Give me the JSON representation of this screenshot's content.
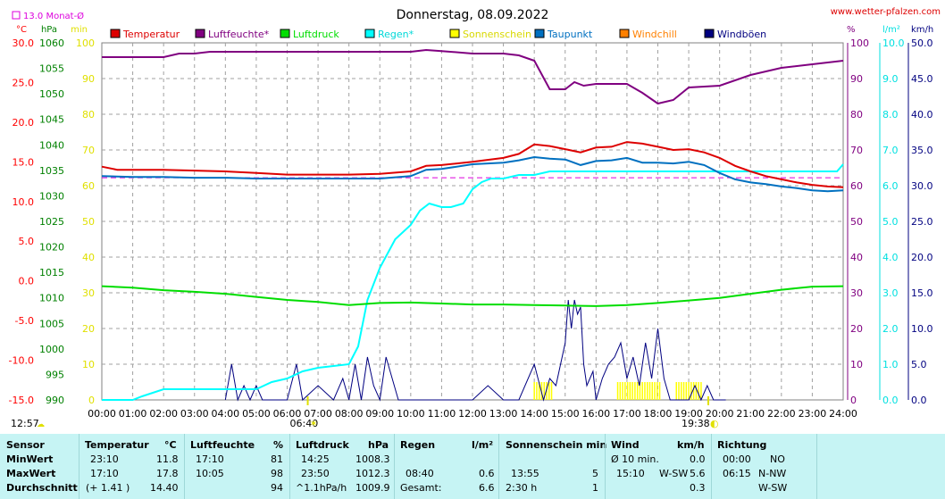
{
  "chart_data": {
    "type": "line",
    "title": "Donnerstag, 08.09.2022",
    "source": "www.wetter-pfalzen.com",
    "month_avg_label": "13.0 Monat-Ø",
    "x_ticks": [
      "00:00",
      "01:00",
      "02:00",
      "03:00",
      "04:00",
      "05:00",
      "06:00",
      "07:00",
      "08:00",
      "09:00",
      "10:00",
      "11:00",
      "12:00",
      "13:00",
      "14:00",
      "15:00",
      "16:00",
      "17:00",
      "18:00",
      "19:00",
      "20:00",
      "21:00",
      "22:00",
      "23:00",
      "24:00"
    ],
    "sunrise": "06:40",
    "sunset": "19:38",
    "daylength": "12:57",
    "axes_left": [
      {
        "unit": "°C",
        "color": "#ff0000",
        "min": -15,
        "max": 30,
        "ticks": [
          "30.0",
          "25.0",
          "20.0",
          "15.0",
          "10.0",
          "5.0",
          "0.0",
          "-5.0",
          "-10.0",
          "-15.0"
        ]
      },
      {
        "unit": "hPa",
        "color": "#008000",
        "min": 990,
        "max": 1060,
        "ticks": [
          "1060",
          "1055",
          "1050",
          "1045",
          "1040",
          "1035",
          "1030",
          "1025",
          "1020",
          "1015",
          "1010",
          "1005",
          "1000",
          "995",
          "990"
        ]
      },
      {
        "unit": "min",
        "color": "#e0e000",
        "min": 0,
        "max": 100,
        "ticks": [
          "100",
          "90",
          "80",
          "70",
          "60",
          "50",
          "40",
          "30",
          "20",
          "10",
          "0"
        ]
      }
    ],
    "axes_right": [
      {
        "unit": "%",
        "color": "#800080",
        "min": 0,
        "max": 100,
        "ticks": [
          "100",
          "90",
          "80",
          "70",
          "60",
          "50",
          "40",
          "30",
          "20",
          "10",
          "0"
        ]
      },
      {
        "unit": "l/m²",
        "color": "#00e0e0",
        "min": 0,
        "max": 10,
        "ticks": [
          "10.0",
          "9.0",
          "8.0",
          "7.0",
          "6.0",
          "5.0",
          "4.0",
          "3.0",
          "2.0",
          "1.0",
          "0.0"
        ]
      },
      {
        "unit": "km/h",
        "color": "#000080",
        "min": 0,
        "max": 50,
        "ticks": [
          "50.0",
          "45.0",
          "40.0",
          "35.0",
          "30.0",
          "25.0",
          "20.0",
          "15.0",
          "10.0",
          "5.0",
          "0.0"
        ]
      }
    ],
    "legend": [
      {
        "name": "Temperatur",
        "color": "#dd0000"
      },
      {
        "name": "Luftfeuchte*",
        "color": "#800080"
      },
      {
        "name": "Luftdruck",
        "color": "#00dd00"
      },
      {
        "name": "Regen*",
        "color": "#00ffff"
      },
      {
        "name": "Sonnenschein",
        "color": "#ffff00"
      },
      {
        "name": "Taupunkt",
        "color": "#0070c0"
      },
      {
        "name": "Windchill",
        "color": "#ff8000"
      },
      {
        "name": "Windböen",
        "color": "#000080"
      }
    ],
    "month_avg_temp": 13.0,
    "series": [
      {
        "name": "Temperatur",
        "color": "#dd0000",
        "axis": "temp",
        "x": [
          0,
          0.5,
          2,
          3,
          4,
          5,
          6,
          7,
          8,
          9,
          10,
          10.5,
          11,
          12,
          13,
          13.5,
          14,
          14.5,
          15,
          15.5,
          16,
          16.5,
          17,
          17.5,
          18,
          18.5,
          19,
          19.5,
          20,
          20.5,
          21,
          21.5,
          22,
          22.5,
          23,
          23.5,
          24
        ],
        "y": [
          14.4,
          14.0,
          14.0,
          13.9,
          13.8,
          13.6,
          13.4,
          13.4,
          13.4,
          13.5,
          13.8,
          14.5,
          14.6,
          15.0,
          15.5,
          16.0,
          17.2,
          17.0,
          16.6,
          16.2,
          16.8,
          16.9,
          17.5,
          17.3,
          16.9,
          16.5,
          16.6,
          16.2,
          15.5,
          14.5,
          13.8,
          13.2,
          12.8,
          12.4,
          12.1,
          11.9,
          11.8
        ]
      },
      {
        "name": "Taupunkt",
        "color": "#0070c0",
        "axis": "temp",
        "x": [
          0,
          1,
          2,
          3,
          4,
          5,
          6,
          7,
          8,
          9,
          10,
          10.5,
          11,
          12,
          13,
          13.5,
          14,
          14.5,
          15,
          15.5,
          16,
          16.5,
          17,
          17.5,
          18,
          18.5,
          19,
          19.5,
          20,
          20.5,
          21,
          21.5,
          22,
          22.5,
          23,
          23.5,
          24
        ],
        "y": [
          13.2,
          13.1,
          13.1,
          13.0,
          13.0,
          12.9,
          12.9,
          12.9,
          12.9,
          12.9,
          13.2,
          14.0,
          14.1,
          14.7,
          14.9,
          15.2,
          15.6,
          15.4,
          15.3,
          14.6,
          15.1,
          15.2,
          15.5,
          14.9,
          14.9,
          14.8,
          15.0,
          14.6,
          13.6,
          12.8,
          12.4,
          12.2,
          11.9,
          11.7,
          11.4,
          11.3,
          11.4
        ]
      },
      {
        "name": "Luftfeuchte*",
        "color": "#800080",
        "axis": "pct",
        "x": [
          0,
          1,
          2,
          2.5,
          3,
          3.5,
          4,
          5,
          6,
          7,
          8,
          9,
          10,
          10.5,
          11,
          12,
          13,
          13.5,
          14,
          14.5,
          15,
          15.3,
          15.6,
          16,
          16.5,
          17,
          17.5,
          18,
          18.5,
          19,
          20,
          21,
          22,
          23,
          24
        ],
        "y": [
          96,
          96,
          96,
          97,
          97,
          97.5,
          97.5,
          97.5,
          97.5,
          97.5,
          97.5,
          97.5,
          97.5,
          98,
          97.7,
          97,
          97,
          96.5,
          95,
          87,
          87,
          89,
          88,
          88.5,
          88.5,
          88.5,
          86,
          83,
          84,
          87.5,
          88,
          91,
          93,
          94,
          95
        ]
      },
      {
        "name": "Luftdruck",
        "color": "#00dd00",
        "axis": "hpa",
        "x": [
          0,
          1,
          2,
          3,
          4,
          5,
          6,
          7,
          8,
          9,
          10,
          11,
          12,
          13,
          14,
          15,
          16,
          17,
          18,
          19,
          20,
          21,
          22,
          23,
          24
        ],
        "y": [
          1012.3,
          1012.0,
          1011.5,
          1011.2,
          1010.8,
          1010.2,
          1009.6,
          1009.2,
          1008.6,
          1009.0,
          1009.1,
          1008.9,
          1008.7,
          1008.7,
          1008.6,
          1008.5,
          1008.4,
          1008.6,
          1009.0,
          1009.5,
          1010.0,
          1010.8,
          1011.6,
          1012.2,
          1012.3
        ]
      },
      {
        "name": "Regen*",
        "color": "#00ffff",
        "axis": "rain",
        "x": [
          0,
          1,
          1.3,
          2,
          3,
          4,
          5,
          5.5,
          6,
          6.5,
          7,
          7.5,
          8,
          8.3,
          8.6,
          9,
          9.5,
          10,
          10.3,
          10.6,
          11,
          11.3,
          11.7,
          12,
          12.3,
          12.6,
          13,
          13.5,
          14,
          14.5,
          15,
          16,
          17,
          18,
          19,
          20,
          21,
          22,
          23,
          23.8,
          24
        ],
        "y": [
          0,
          0,
          0.1,
          0.3,
          0.3,
          0.3,
          0.3,
          0.5,
          0.6,
          0.8,
          0.9,
          0.95,
          1.0,
          1.5,
          2.8,
          3.7,
          4.5,
          4.9,
          5.3,
          5.5,
          5.4,
          5.4,
          5.5,
          5.9,
          6.1,
          6.2,
          6.2,
          6.3,
          6.3,
          6.4,
          6.4,
          6.4,
          6.4,
          6.4,
          6.4,
          6.4,
          6.4,
          6.4,
          6.4,
          6.4,
          6.6
        ]
      },
      {
        "name": "Windböen",
        "color": "#000080",
        "axis": "wind",
        "x": [
          4,
          4.2,
          4.4,
          4.6,
          4.8,
          5,
          5.2,
          5.4,
          6,
          6.3,
          6.5,
          7,
          7.5,
          7.8,
          8,
          8.2,
          8.4,
          8.6,
          8.8,
          9,
          9.2,
          9.4,
          9.6,
          9.8,
          10,
          11,
          12,
          12.5,
          13,
          13.5,
          14,
          14.3,
          14.5,
          14.7,
          15,
          15.1,
          15.2,
          15.3,
          15.4,
          15.5,
          15.6,
          15.7,
          15.9,
          16,
          16.2,
          16.4,
          16.6,
          16.8,
          17,
          17.2,
          17.4,
          17.6,
          17.8,
          18,
          18.2,
          18.4,
          18.5,
          19,
          19.2,
          19.4,
          19.6,
          19.8,
          20,
          20.2
        ],
        "y": [
          0,
          5,
          0,
          2,
          0,
          2,
          0,
          0,
          0,
          5,
          0,
          2,
          0,
          3,
          0,
          5,
          0,
          6,
          2,
          0,
          6,
          3,
          0,
          0,
          0,
          0,
          0,
          2,
          0,
          0,
          5,
          0,
          3,
          2,
          8,
          14,
          10,
          14,
          12,
          13,
          5,
          2,
          4,
          0,
          3,
          5,
          6,
          8,
          3,
          6,
          2,
          8,
          3,
          10,
          3,
          0,
          0,
          0,
          2,
          0,
          2,
          0,
          0,
          0
        ]
      }
    ],
    "sunshine_bars": [
      [
        14.0,
        14.6
      ],
      [
        16.7,
        17.1
      ],
      [
        17.1,
        18.1
      ],
      [
        18.6,
        19.4
      ]
    ]
  },
  "stats": {
    "headers": {
      "sensor": "Sensor",
      "temp": "Temperatur",
      "temp_unit": "°C",
      "hum": "Luftfeuchte",
      "hum_unit": "%",
      "press": "Luftdruck",
      "press_unit": "hPa",
      "rain": "Regen",
      "rain_unit": "l/m²",
      "sun": "Sonnenschein min",
      "wind": "Wind",
      "wind_unit": "km/h",
      "dir": "Richtung"
    },
    "rows": [
      {
        "label": "MinWert",
        "temp_t": "23:10",
        "temp_v": "11.8",
        "hum_t": "17:10",
        "hum_v": "81",
        "press_t": "14:25",
        "press_v": "1008.3",
        "rain_t": "",
        "rain_v": "",
        "sun_t": "",
        "sun_v": "",
        "wind_t": "Ø 10 min.",
        "wind_d": "",
        "wind_v": "0.0",
        "dir_t": "00:00",
        "dir_v": "NO"
      },
      {
        "label": "MaxWert",
        "temp_t": "17:10",
        "temp_v": "17.8",
        "hum_t": "10:05",
        "hum_v": "98",
        "press_t": "23:50",
        "press_v": "1012.3",
        "rain_t": "08:40",
        "rain_v": "0.6",
        "sun_t": "13:55",
        "sun_v": "5",
        "wind_t": "15:10",
        "wind_d": "W-SW",
        "wind_v": "5.6",
        "dir_t": "06:15",
        "dir_v": "N-NW"
      },
      {
        "label": "Durchschnitt",
        "temp_t": "(+ 1.41 )",
        "temp_v": "14.40",
        "hum_t": "",
        "hum_v": "94",
        "press_t": "^1.1hPa/h",
        "press_v": "1009.9",
        "rain_t": "Gesamt:",
        "rain_v": "6.6",
        "sun_t": "2:30 h",
        "sun_v": "1",
        "wind_t": "",
        "wind_d": "",
        "wind_v": "0.3",
        "dir_t": "",
        "dir_v": "W-SW"
      }
    ]
  }
}
